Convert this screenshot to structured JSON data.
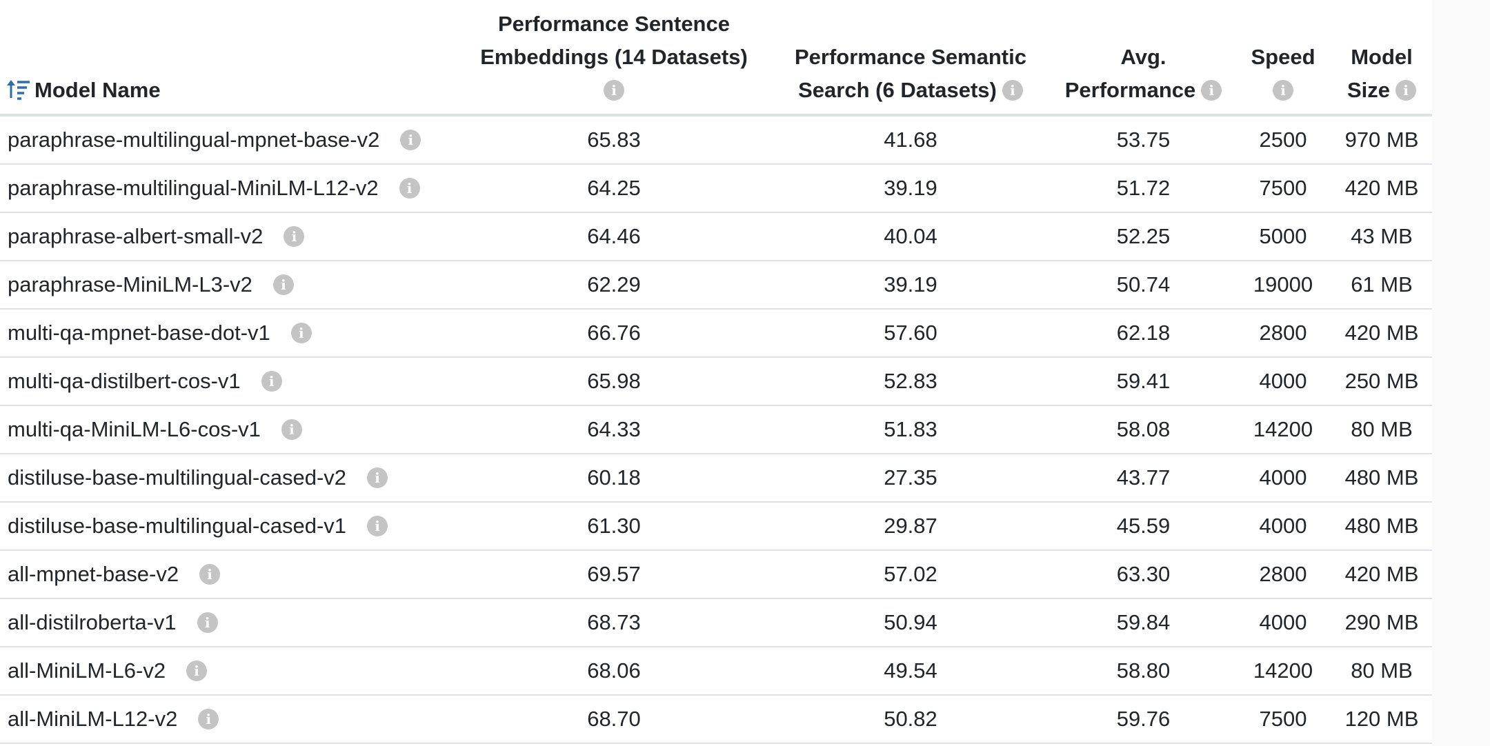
{
  "table": {
    "headers": {
      "model_name": "Model Name",
      "emb_line1": "Performance Sentence",
      "emb_line2": "Embeddings (14 Datasets)",
      "sem_line1": "Performance Semantic",
      "sem_line2": "Search (6 Datasets)",
      "avg_line1": "Avg.",
      "avg_line2": "Performance",
      "speed": "Speed",
      "size_line1": "Model",
      "size_line2": "Size"
    },
    "info_glyph": "i",
    "sort_icon": "sort-ascending-icon",
    "accent_color": "#2a6db5",
    "rows": [
      {
        "name": "paraphrase-multilingual-mpnet-base-v2",
        "emb": "65.83",
        "sem": "41.68",
        "avg": "53.75",
        "speed": "2500",
        "size": "970 MB"
      },
      {
        "name": "paraphrase-multilingual-MiniLM-L12-v2",
        "emb": "64.25",
        "sem": "39.19",
        "avg": "51.72",
        "speed": "7500",
        "size": "420 MB"
      },
      {
        "name": "paraphrase-albert-small-v2",
        "emb": "64.46",
        "sem": "40.04",
        "avg": "52.25",
        "speed": "5000",
        "size": "43 MB"
      },
      {
        "name": "paraphrase-MiniLM-L3-v2",
        "emb": "62.29",
        "sem": "39.19",
        "avg": "50.74",
        "speed": "19000",
        "size": "61 MB"
      },
      {
        "name": "multi-qa-mpnet-base-dot-v1",
        "emb": "66.76",
        "sem": "57.60",
        "avg": "62.18",
        "speed": "2800",
        "size": "420 MB"
      },
      {
        "name": "multi-qa-distilbert-cos-v1",
        "emb": "65.98",
        "sem": "52.83",
        "avg": "59.41",
        "speed": "4000",
        "size": "250 MB"
      },
      {
        "name": "multi-qa-MiniLM-L6-cos-v1",
        "emb": "64.33",
        "sem": "51.83",
        "avg": "58.08",
        "speed": "14200",
        "size": "80 MB"
      },
      {
        "name": "distiluse-base-multilingual-cased-v2",
        "emb": "60.18",
        "sem": "27.35",
        "avg": "43.77",
        "speed": "4000",
        "size": "480 MB"
      },
      {
        "name": "distiluse-base-multilingual-cased-v1",
        "emb": "61.30",
        "sem": "29.87",
        "avg": "45.59",
        "speed": "4000",
        "size": "480 MB"
      },
      {
        "name": "all-mpnet-base-v2",
        "emb": "69.57",
        "sem": "57.02",
        "avg": "63.30",
        "speed": "2800",
        "size": "420 MB"
      },
      {
        "name": "all-distilroberta-v1",
        "emb": "68.73",
        "sem": "50.94",
        "avg": "59.84",
        "speed": "4000",
        "size": "290 MB"
      },
      {
        "name": "all-MiniLM-L6-v2",
        "emb": "68.06",
        "sem": "49.54",
        "avg": "58.80",
        "speed": "14200",
        "size": "80 MB"
      },
      {
        "name": "all-MiniLM-L12-v2",
        "emb": "68.70",
        "sem": "50.82",
        "avg": "59.76",
        "speed": "7500",
        "size": "120 MB"
      }
    ]
  }
}
